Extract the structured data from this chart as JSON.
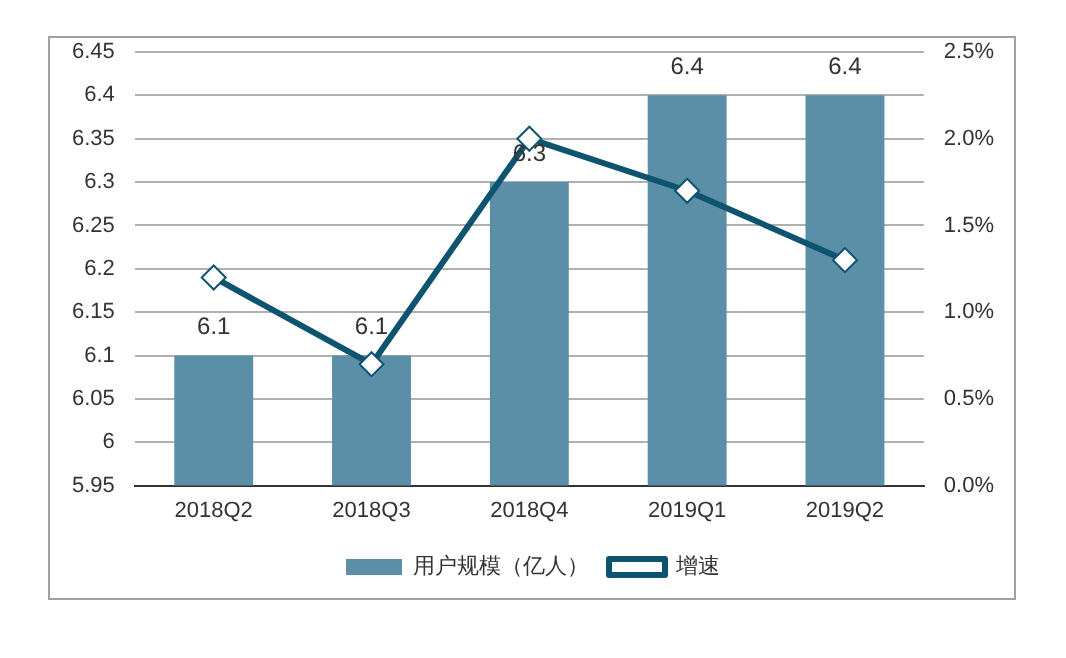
{
  "chart_data": {
    "type": "bar",
    "categories": [
      "2018Q2",
      "2018Q3",
      "2018Q4",
      "2019Q1",
      "2019Q2"
    ],
    "series": [
      {
        "name": "用户规模（亿人）",
        "color": "#5b8fa8",
        "values": [
          6.1,
          6.1,
          6.3,
          6.4,
          6.4
        ],
        "value_labels": [
          "6.1",
          "6.1",
          "6.3",
          "6.4",
          "6.4"
        ]
      },
      {
        "name": "增速",
        "type": "line",
        "axis": "y2",
        "color": "#0e5470",
        "values": [
          1.2,
          0.7,
          2.0,
          1.7,
          1.3
        ],
        "marker": "diamond"
      }
    ],
    "ylim": [
      5.95,
      6.45
    ],
    "yticks": [
      5.95,
      6,
      6.05,
      6.1,
      6.15,
      6.2,
      6.25,
      6.3,
      6.35,
      6.4,
      6.45
    ],
    "y2lim": [
      0,
      2.5
    ],
    "y2ticks": [
      {
        "value": 0,
        "label": "0.0%"
      },
      {
        "value": 0.5,
        "label": "0.5%"
      },
      {
        "value": 1,
        "label": "1.0%"
      },
      {
        "value": 1.5,
        "label": "1.5%"
      },
      {
        "value": 2,
        "label": "2.0%"
      },
      {
        "value": 2.5,
        "label": "2.5%"
      }
    ],
    "grid": "y",
    "legend": "bottom"
  }
}
